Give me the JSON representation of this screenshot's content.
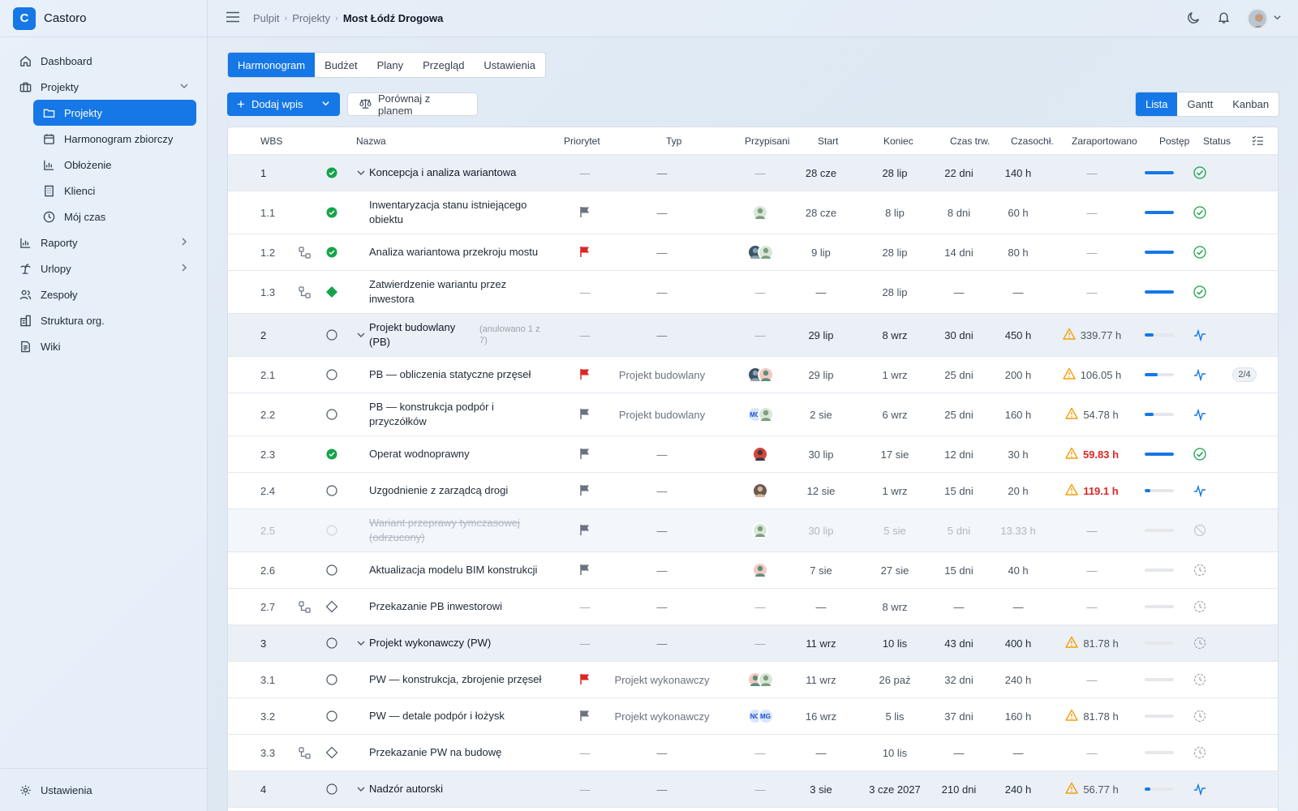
{
  "app": {
    "name": "Castoro",
    "logo_letter": "C"
  },
  "sidebar": {
    "items": [
      {
        "label": "Dashboard",
        "icon": "home-icon"
      },
      {
        "label": "Projekty",
        "icon": "briefcase-icon",
        "expanded": true
      },
      {
        "label": "Raporty",
        "icon": "bar-chart-icon"
      },
      {
        "label": "Urlopy",
        "icon": "palm-tree-icon"
      },
      {
        "label": "Zespoły",
        "icon": "users-icon"
      },
      {
        "label": "Struktura org.",
        "icon": "building-icon"
      },
      {
        "label": "Wiki",
        "icon": "document-icon"
      }
    ],
    "sub_items": [
      {
        "label": "Projekty",
        "icon": "folder-icon",
        "active": true
      },
      {
        "label": "Harmonogram zbiorczy",
        "icon": "calendar-icon"
      },
      {
        "label": "Obłożenie",
        "icon": "chart-icon"
      },
      {
        "label": "Klienci",
        "icon": "building-icon"
      },
      {
        "label": "Mój czas",
        "icon": "clock-icon"
      }
    ],
    "footer": {
      "label": "Ustawienia",
      "icon": "gear-icon"
    }
  },
  "breadcrumb": {
    "items": [
      "Pulpit",
      "Projekty"
    ],
    "current": "Most Łódź Drogowa"
  },
  "tabs": [
    "Harmonogram",
    "Budżet",
    "Plany",
    "Przegląd",
    "Ustawienia"
  ],
  "active_tab": "Harmonogram",
  "toolbar": {
    "add_label": "Dodaj wpis",
    "compare_label": "Porównaj z planem"
  },
  "views": [
    "Lista",
    "Gantt",
    "Kanban"
  ],
  "active_view": "Lista",
  "colors": {
    "accent": "#1677e6",
    "success": "#16a34a",
    "warning": "#f59e0b",
    "danger": "#dc2626"
  },
  "columns": {
    "wbs": "WBS",
    "name": "Nazwa",
    "priority": "Priorytet",
    "type": "Typ",
    "assigned": "Przypisani",
    "start": "Start",
    "end": "Koniec",
    "duration": "Czas trw.",
    "capacity": "Czasochł.",
    "reported": "Zaraportowano",
    "progress": "Postęp",
    "status": "Status"
  },
  "rows": [
    {
      "wbs": "1",
      "name": "Koncepcja i analiza wariantowa",
      "group": true,
      "status_icon": "done",
      "priority": "—",
      "type": "—",
      "assigned": "—",
      "start": "28 cze",
      "end": "28 lip",
      "duration": "22 dni",
      "capacity": "140 h",
      "reported": "—",
      "progress": 1.0,
      "state": "check"
    },
    {
      "wbs": "1.1",
      "name": "Inwentaryzacja stanu istniejącego obiektu",
      "status_icon": "done",
      "priority": "flag-gray",
      "type": "—",
      "assignees": [
        "av1"
      ],
      "start": "28 cze",
      "end": "8 lip",
      "duration": "8 dni",
      "capacity": "60 h",
      "reported": "—",
      "progress": 1.0,
      "state": "check"
    },
    {
      "wbs": "1.2",
      "name": "Analiza wariantowa przekroju mostu",
      "dep": true,
      "status_icon": "done",
      "priority": "flag-red",
      "type": "—",
      "assignees": [
        "av2",
        "av1"
      ],
      "start": "9 lip",
      "end": "28 lip",
      "duration": "14 dni",
      "capacity": "80 h",
      "reported": "—",
      "progress": 1.0,
      "state": "check"
    },
    {
      "wbs": "1.3",
      "name": "Zatwierdzenie wariantu przez inwestora",
      "dep": true,
      "status_icon": "milestone-done",
      "priority": "—",
      "type": "—",
      "assigned": "—",
      "start": "—",
      "end": "28 lip",
      "duration": "—",
      "capacity": "—",
      "reported": "—",
      "progress": 1.0,
      "state": "check"
    },
    {
      "wbs": "2",
      "name": "Projekt budowlany (PB)",
      "annotation": "(anulowano 1 z 7)",
      "group": true,
      "status_icon": "open",
      "priority": "—",
      "type": "—",
      "assigned": "—",
      "start": "29 lip",
      "end": "8 wrz",
      "duration": "30 dni",
      "capacity": "450 h",
      "reported": "339.77 h",
      "warn": true,
      "progress": 0.3,
      "state": "pulse"
    },
    {
      "wbs": "2.1",
      "name": "PB — obliczenia statyczne przęseł",
      "status_icon": "open",
      "priority": "flag-red",
      "type": "Projekt budowlany",
      "assignees": [
        "av2",
        "av3"
      ],
      "start": "29 lip",
      "end": "1 wrz",
      "duration": "25 dni",
      "capacity": "200 h",
      "reported": "106.05 h",
      "warn": true,
      "progress": 0.45,
      "state": "pulse",
      "extra": "2/4"
    },
    {
      "wbs": "2.2",
      "name": "PB — konstrukcja podpór i przyczółków",
      "status_icon": "open",
      "priority": "flag-gray",
      "type": "Projekt budowlany",
      "assignees": [
        "MC",
        "av1"
      ],
      "start": "2 sie",
      "end": "6 wrz",
      "duration": "25 dni",
      "capacity": "160 h",
      "reported": "54.78 h",
      "warn": true,
      "progress": 0.3,
      "state": "pulse"
    },
    {
      "wbs": "2.3",
      "name": "Operat wodnoprawny",
      "status_icon": "done",
      "priority": "flag-gray",
      "type": "—",
      "assignees": [
        "av4"
      ],
      "start": "30 lip",
      "end": "17 sie",
      "duration": "12 dni",
      "capacity": "30 h",
      "reported": "59.83 h",
      "warn": true,
      "hot": true,
      "progress": 1.0,
      "state": "check"
    },
    {
      "wbs": "2.4",
      "name": "Uzgodnienie z zarządcą drogi",
      "status_icon": "open",
      "priority": "flag-gray",
      "type": "—",
      "assignees": [
        "av5"
      ],
      "start": "12 sie",
      "end": "1 wrz",
      "duration": "15 dni",
      "capacity": "20 h",
      "reported": "119.1 h",
      "warn": true,
      "hot": true,
      "progress": 0.2,
      "state": "pulse"
    },
    {
      "wbs": "2.5",
      "name": "Wariant przeprawy tymczasowej (odrzucony)",
      "cancelled": true,
      "status_icon": "open-faded",
      "priority": "flag-gray",
      "type": "—",
      "assignees": [
        "av1"
      ],
      "start": "30 lip",
      "end": "5 sie",
      "duration": "5 dni",
      "capacity": "13.33 h",
      "reported": "—",
      "progress": 0.0,
      "state": "cancel"
    },
    {
      "wbs": "2.6",
      "name": "Aktualizacja modelu BIM konstrukcji",
      "status_icon": "open",
      "priority": "flag-gray",
      "type": "—",
      "assignees": [
        "av3"
      ],
      "start": "7 sie",
      "end": "27 sie",
      "duration": "15 dni",
      "capacity": "40 h",
      "reported": "—",
      "progress": 0.0,
      "state": "pending"
    },
    {
      "wbs": "2.7",
      "name": "Przekazanie PB inwestorowi",
      "dep": true,
      "status_icon": "milestone-open",
      "priority": "—",
      "type": "—",
      "assigned": "—",
      "start": "—",
      "end": "8 wrz",
      "duration": "—",
      "capacity": "—",
      "reported": "—",
      "progress": 0.0,
      "state": "pending"
    },
    {
      "wbs": "3",
      "name": "Projekt wykonawczy (PW)",
      "group": true,
      "status_icon": "open",
      "priority": "—",
      "type": "—",
      "assigned": "—",
      "start": "11 wrz",
      "end": "10 lis",
      "duration": "43 dni",
      "capacity": "400 h",
      "reported": "81.78 h",
      "warn": true,
      "progress": 0.0,
      "state": "pending"
    },
    {
      "wbs": "3.1",
      "name": "PW — konstrukcja, zbrojenie przęseł",
      "status_icon": "open",
      "priority": "flag-red",
      "type": "Projekt wykonawczy",
      "assignees": [
        "av3",
        "av1"
      ],
      "start": "11 wrz",
      "end": "26 paź",
      "duration": "32 dni",
      "capacity": "240 h",
      "reported": "—",
      "progress": 0.0,
      "state": "pending"
    },
    {
      "wbs": "3.2",
      "name": "PW — detale podpór i łożysk",
      "status_icon": "open",
      "priority": "flag-gray",
      "type": "Projekt wykonawczy",
      "assignees": [
        "NC",
        "MG"
      ],
      "start": "16 wrz",
      "end": "5 lis",
      "duration": "37 dni",
      "capacity": "160 h",
      "reported": "81.78 h",
      "warn": true,
      "progress": 0.0,
      "state": "pending"
    },
    {
      "wbs": "3.3",
      "name": "Przekazanie PW na budowę",
      "dep": true,
      "status_icon": "milestone-open",
      "priority": "—",
      "type": "—",
      "assigned": "—",
      "start": "—",
      "end": "10 lis",
      "duration": "—",
      "capacity": "—",
      "reported": "—",
      "progress": 0.0,
      "state": "pending"
    },
    {
      "wbs": "4",
      "name": "Nadzór autorski",
      "group": true,
      "status_icon": "open",
      "priority": "—",
      "type": "—",
      "assigned": "—",
      "start": "3 sie",
      "end": "3 cze 2027",
      "duration": "210 dni",
      "capacity": "240 h",
      "reported": "56.77 h",
      "warn": true,
      "progress": 0.2,
      "state": "pulse"
    }
  ]
}
